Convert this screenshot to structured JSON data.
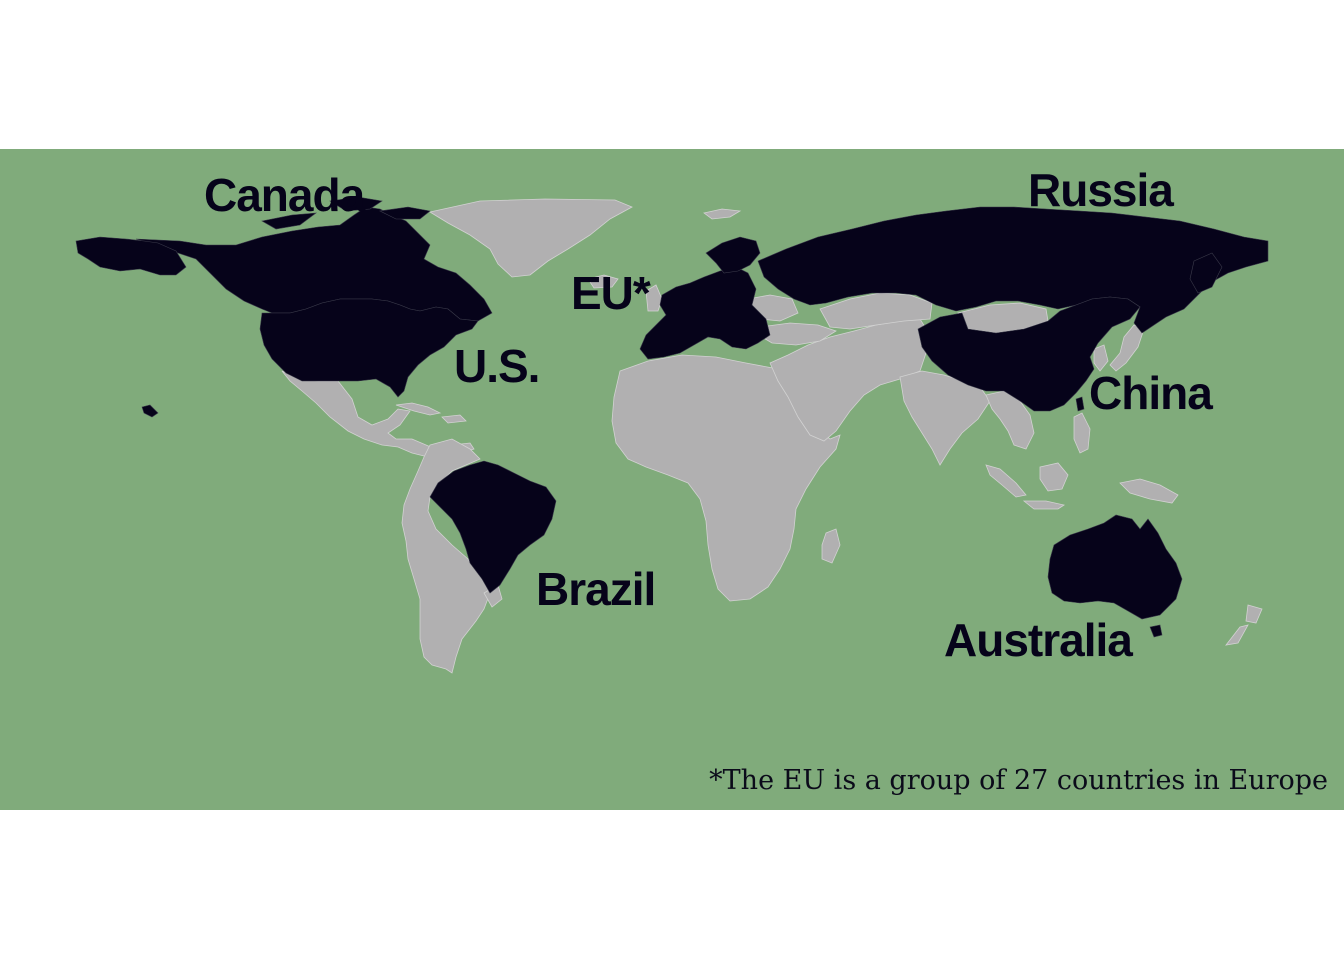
{
  "colors": {
    "ocean": "#80ab7b",
    "highlighted_land": "#06031a",
    "other_land": "#b1b0b1",
    "border": "#d2d2d2"
  },
  "labels": {
    "canada": "Canada",
    "russia": "Russia",
    "eu": "EU*",
    "us": "U.S.",
    "china": "China",
    "brazil": "Brazil",
    "australia": "Australia"
  },
  "footnote": "*The EU is a group of 27 countries in Europe",
  "highlighted_regions": [
    "Canada",
    "U.S.",
    "Russia",
    "EU",
    "China",
    "Brazil",
    "Australia"
  ]
}
